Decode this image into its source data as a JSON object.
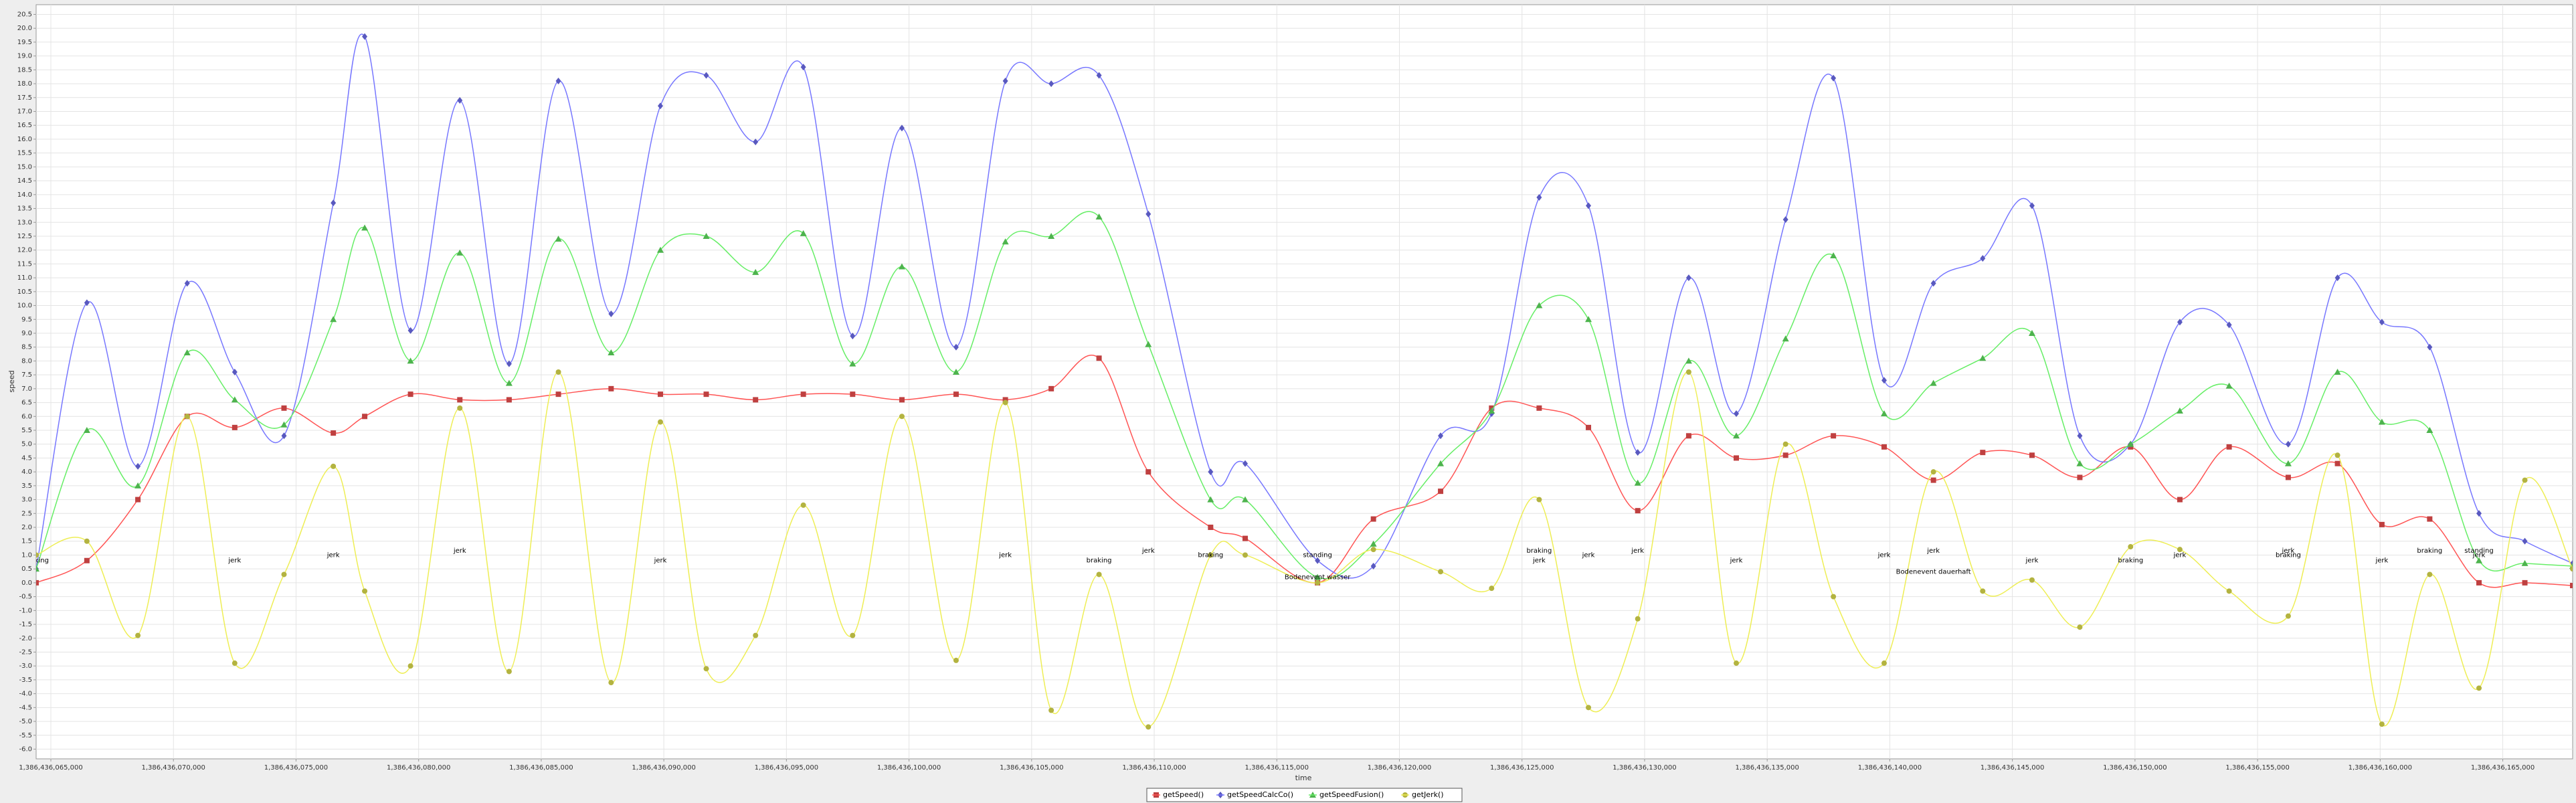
{
  "chart_data": {
    "type": "line",
    "xlabel": "time",
    "ylabel": "speed",
    "xlim": [
      1386436064400,
      1386436167850
    ],
    "ylim": [
      -6.35,
      20.85
    ],
    "grid": true,
    "legend": "bottom",
    "xticks": [
      {
        "value": 1386436065000,
        "label": "1,386,436,065,000"
      },
      {
        "value": 1386436070000,
        "label": "1,386,436,070,000"
      },
      {
        "value": 1386436075000,
        "label": "1,386,436,075,000"
      },
      {
        "value": 1386436080000,
        "label": "1,386,436,080,000"
      },
      {
        "value": 1386436085000,
        "label": "1,386,436,085,000"
      },
      {
        "value": 1386436090000,
        "label": "1,386,436,090,000"
      },
      {
        "value": 1386436095000,
        "label": "1,386,436,095,000"
      },
      {
        "value": 1386436100000,
        "label": "1,386,436,100,000"
      },
      {
        "value": 1386436105000,
        "label": "1,386,436,105,000"
      },
      {
        "value": 1386436110000,
        "label": "1,386,436,110,000"
      },
      {
        "value": 1386436115000,
        "label": "1,386,436,115,000"
      },
      {
        "value": 1386436120000,
        "label": "1,386,436,120,000"
      },
      {
        "value": 1386436125000,
        "label": "1,386,436,125,000"
      },
      {
        "value": 1386436130000,
        "label": "1,386,436,130,000"
      },
      {
        "value": 1386436135000,
        "label": "1,386,436,135,000"
      },
      {
        "value": 1386436140000,
        "label": "1,386,436,140,000"
      },
      {
        "value": 1386436145000,
        "label": "1,386,436,145,000"
      },
      {
        "value": 1386436150000,
        "label": "1,386,436,150,000"
      },
      {
        "value": 1386436155000,
        "label": "1,386,436,155,000"
      },
      {
        "value": 1386436160000,
        "label": "1,386,436,160,000"
      },
      {
        "value": 1386436165000,
        "label": "1,386,436,165,000"
      }
    ],
    "yticks": [
      {
        "value": -6,
        "label": "-6.0"
      },
      -5.5,
      {
        "value": -5,
        "label": "-5.0"
      },
      -4.5,
      {
        "value": -4,
        "label": "-4.0"
      },
      -3.5,
      {
        "value": -3,
        "label": "-3.0"
      },
      -2.5,
      {
        "value": -2,
        "label": "-2.0"
      },
      -1.5,
      {
        "value": -1,
        "label": "-1.0"
      },
      -0.5,
      {
        "value": 0,
        "label": "0.0"
      },
      0.5,
      {
        "value": 1,
        "label": "1.0"
      },
      1.5,
      {
        "value": 2,
        "label": "2.0"
      },
      2.5,
      {
        "value": 3,
        "label": "3.0"
      },
      3.5,
      {
        "value": 4,
        "label": "4.0"
      },
      4.5,
      {
        "value": 5,
        "label": "5.0"
      },
      5.5,
      {
        "value": 6,
        "label": "6.0"
      },
      6.5,
      {
        "value": 7,
        "label": "7.0"
      },
      7.5,
      {
        "value": 8,
        "label": "8.0"
      },
      8.5,
      {
        "value": 9,
        "label": "9.0"
      },
      9.5,
      {
        "value": 10,
        "label": "10.0"
      },
      10.5,
      {
        "value": 11,
        "label": "11.0"
      },
      11.5,
      {
        "value": 12,
        "label": "12.0"
      },
      12.5,
      {
        "value": 13,
        "label": "13.0"
      },
      13.5,
      {
        "value": 14,
        "label": "14.0"
      },
      14.5,
      {
        "value": 15,
        "label": "15.0"
      },
      15.5,
      {
        "value": 16,
        "label": "16.0"
      },
      16.5,
      {
        "value": 17,
        "label": "17.0"
      },
      17.5,
      {
        "value": 18,
        "label": "18.0"
      },
      18.5,
      {
        "value": 19,
        "label": "19.0"
      },
      19.5,
      {
        "value": 20,
        "label": "20.0"
      },
      20.5
    ],
    "x": [
      1386436064400,
      1386436066470,
      1386436068550,
      1386436070560,
      1386436072500,
      1386436074510,
      1386436076520,
      1386436077800,
      1386436079670,
      1386436081680,
      1386436083690,
      1386436085700,
      1386436087850,
      1386436089860,
      1386436091730,
      1386436093740,
      1386436095690,
      1386436097700,
      1386436099710,
      1386436101920,
      1386436103930,
      1386436105800,
      1386436107750,
      1386436109760,
      1386436112300,
      1386436113710,
      1386436116660,
      1386436118940,
      1386436121680,
      1386436123760,
      1386436125700,
      1386436127710,
      1386436129720,
      1386436131800,
      1386436133740,
      1386436135750,
      1386436137700,
      1386436139770,
      1386436141780,
      1386436143790,
      1386436145800,
      1386436147750,
      1386436149820,
      1386436151830,
      1386436153840,
      1386436156250,
      1386436158260,
      1386436160070,
      1386436162020,
      1386436164030,
      1386436165900,
      1386436167850
    ],
    "series": [
      {
        "name": "getSpeed()",
        "color": "#ff5555",
        "marker": "square",
        "values": [
          0.0,
          0.8,
          3.0,
          6.0,
          5.6,
          6.3,
          5.4,
          6.0,
          6.8,
          6.6,
          6.6,
          6.8,
          7.0,
          6.8,
          6.8,
          6.6,
          6.8,
          6.8,
          6.6,
          6.8,
          6.6,
          7.0,
          8.1,
          4.0,
          2.0,
          1.6,
          0.0,
          2.3,
          3.3,
          6.3,
          6.3,
          5.6,
          2.6,
          5.3,
          4.5,
          4.6,
          5.3,
          4.9,
          3.7,
          4.7,
          4.6,
          3.8,
          4.9,
          3.0,
          4.9,
          3.8,
          4.3,
          2.1,
          2.3,
          0.0,
          0.0,
          -0.1
        ]
      },
      {
        "name": "getSpeedCalcCo()",
        "color": "#7777ff",
        "marker": "star",
        "values": [
          0.5,
          10.1,
          4.2,
          10.8,
          7.6,
          5.3,
          13.7,
          19.7,
          9.1,
          17.4,
          7.9,
          18.1,
          9.7,
          17.2,
          18.3,
          15.9,
          18.6,
          8.9,
          16.4,
          8.5,
          18.1,
          18.0,
          18.3,
          13.3,
          4.0,
          4.3,
          0.8,
          0.6,
          5.3,
          6.1,
          13.9,
          13.6,
          4.7,
          11.0,
          6.1,
          13.1,
          18.2,
          7.3,
          10.8,
          11.7,
          13.6,
          5.3,
          5.0,
          9.4,
          9.3,
          5.0,
          11.0,
          9.4,
          8.5,
          2.5,
          1.5,
          0.7
        ]
      },
      {
        "name": "getSpeedFusion()",
        "color": "#66ee66",
        "marker": "triangle",
        "values": [
          0.5,
          5.5,
          3.5,
          8.3,
          6.6,
          5.7,
          9.5,
          12.8,
          8.0,
          11.9,
          7.2,
          12.4,
          8.3,
          12.0,
          12.5,
          11.2,
          12.6,
          7.9,
          11.4,
          7.6,
          12.3,
          12.5,
          13.2,
          8.6,
          3.0,
          3.0,
          0.2,
          1.4,
          4.3,
          6.2,
          10.0,
          9.5,
          3.6,
          8.0,
          5.3,
          8.8,
          11.8,
          6.1,
          7.2,
          8.1,
          9.0,
          4.3,
          5.0,
          6.2,
          7.1,
          4.3,
          7.6,
          5.8,
          5.5,
          0.8,
          0.7,
          0.6
        ]
      },
      {
        "name": "getJerk()",
        "color": "#eeee55",
        "marker": "circle",
        "values": [
          1.0,
          1.5,
          -1.9,
          6.0,
          -2.9,
          0.3,
          4.2,
          -0.3,
          -3.0,
          6.3,
          -3.2,
          7.6,
          -3.6,
          5.8,
          -3.1,
          -1.9,
          2.8,
          -1.9,
          6.0,
          -2.8,
          6.5,
          -4.6,
          0.3,
          -5.2,
          1.0,
          1.0,
          0.0,
          1.2,
          0.4,
          -0.2,
          3.0,
          -4.5,
          -1.3,
          7.6,
          -2.9,
          5.0,
          -0.5,
          -2.9,
          4.0,
          -0.3,
          0.1,
          -1.6,
          1.3,
          1.2,
          -0.3,
          -1.2,
          4.6,
          -5.1,
          0.3,
          -3.8,
          3.7,
          0.5
        ]
      }
    ],
    "annotations": [
      {
        "text": "braking",
        "x": 1386436064400,
        "y": 0.8
      },
      {
        "text": "jerk",
        "x": 1386436072500,
        "y": 0.8
      },
      {
        "text": "jerk",
        "x": 1386436076520,
        "y": 1.0
      },
      {
        "text": "jerk",
        "x": 1386436081680,
        "y": 1.15
      },
      {
        "text": "jerk",
        "x": 1386436089860,
        "y": 0.8
      },
      {
        "text": "jerk",
        "x": 1386436103930,
        "y": 1.0
      },
      {
        "text": "braking",
        "x": 1386436107750,
        "y": 0.8
      },
      {
        "text": "jerk",
        "x": 1386436109760,
        "y": 1.15
      },
      {
        "text": "braking",
        "x": 1386436112300,
        "y": 1.0
      },
      {
        "text": "standing",
        "x": 1386436116660,
        "y": 1.0
      },
      {
        "text": "Bodenevent wasser",
        "x": 1386436116660,
        "y": 0.2
      },
      {
        "text": "braking",
        "x": 1386436125700,
        "y": 1.15
      },
      {
        "text": "jerk",
        "x": 1386436125700,
        "y": 0.8
      },
      {
        "text": "jerk",
        "x": 1386436127710,
        "y": 1.0
      },
      {
        "text": "jerk",
        "x": 1386436129720,
        "y": 1.15
      },
      {
        "text": "jerk",
        "x": 1386436133740,
        "y": 0.8
      },
      {
        "text": "jerk",
        "x": 1386436139770,
        "y": 1.0
      },
      {
        "text": "jerk",
        "x": 1386436141780,
        "y": 1.15
      },
      {
        "text": "Bodenevent dauerhaft",
        "x": 1386436141780,
        "y": 0.4
      },
      {
        "text": "jerk",
        "x": 1386436145800,
        "y": 0.8
      },
      {
        "text": "braking",
        "x": 1386436149820,
        "y": 0.8
      },
      {
        "text": "jerk",
        "x": 1386436151830,
        "y": 1.0
      },
      {
        "text": "jerk",
        "x": 1386436156250,
        "y": 1.15
      },
      {
        "text": "braking",
        "x": 1386436156250,
        "y": 1.0
      },
      {
        "text": "jerk",
        "x": 1386436160070,
        "y": 0.8
      },
      {
        "text": "braking",
        "x": 1386436162020,
        "y": 1.15
      },
      {
        "text": "standing",
        "x": 1386436164030,
        "y": 1.15
      },
      {
        "text": "jerk",
        "x": 1386436164030,
        "y": 1.0
      }
    ]
  }
}
